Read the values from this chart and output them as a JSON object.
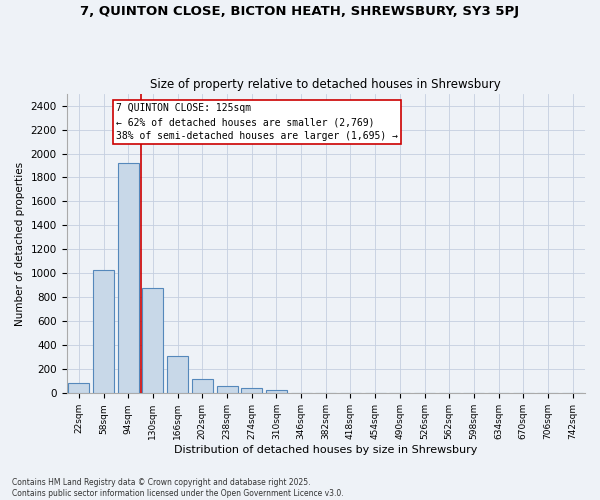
{
  "title1": "7, QUINTON CLOSE, BICTON HEATH, SHREWSBURY, SY3 5PJ",
  "title2": "Size of property relative to detached houses in Shrewsbury",
  "xlabel": "Distribution of detached houses by size in Shrewsbury",
  "ylabel": "Number of detached properties",
  "bar_labels": [
    "22sqm",
    "58sqm",
    "94sqm",
    "130sqm",
    "166sqm",
    "202sqm",
    "238sqm",
    "274sqm",
    "310sqm",
    "346sqm",
    "382sqm",
    "418sqm",
    "454sqm",
    "490sqm",
    "526sqm",
    "562sqm",
    "598sqm",
    "634sqm",
    "670sqm",
    "706sqm",
    "742sqm"
  ],
  "bar_values": [
    90,
    1030,
    1920,
    880,
    315,
    120,
    60,
    45,
    25,
    0,
    0,
    0,
    0,
    0,
    0,
    0,
    0,
    0,
    0,
    0,
    0
  ],
  "bar_color": "#c8d8e8",
  "bar_edge_color": "#5588bb",
  "ylim": [
    0,
    2500
  ],
  "yticks": [
    0,
    200,
    400,
    600,
    800,
    1000,
    1200,
    1400,
    1600,
    1800,
    2000,
    2200,
    2400
  ],
  "vline_color": "#cc0000",
  "annotation_text": "7 QUINTON CLOSE: 125sqm\n← 62% of detached houses are smaller (2,769)\n38% of semi-detached houses are larger (1,695) →",
  "annotation_box_color": "#cc0000",
  "footer1": "Contains HM Land Registry data © Crown copyright and database right 2025.",
  "footer2": "Contains public sector information licensed under the Open Government Licence v3.0.",
  "bg_color": "#eef2f7",
  "grid_color": "#c5cfe0",
  "title_fontsize": 9.5,
  "subtitle_fontsize": 8.5,
  "bar_width": 0.85
}
